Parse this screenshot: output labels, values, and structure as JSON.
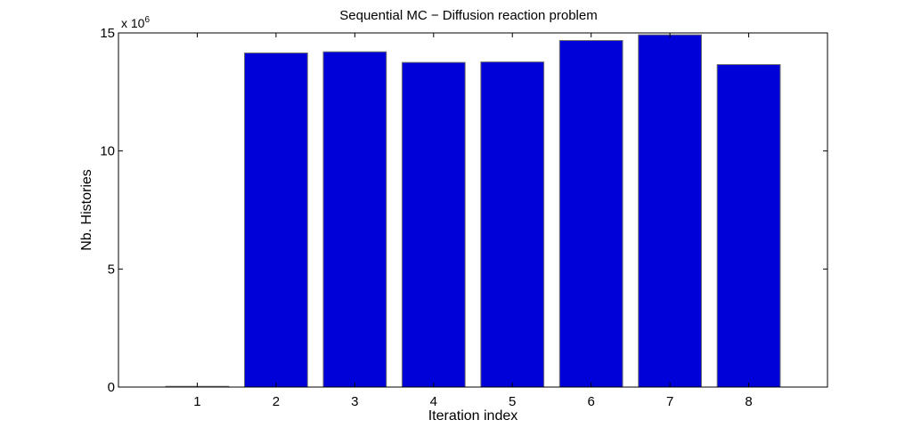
{
  "chart_data": {
    "type": "bar",
    "title": "Sequential MC − Diffusion reaction problem",
    "xlabel": "Iteration index",
    "ylabel": "Nb. Histories",
    "categories": [
      "1",
      "2",
      "3",
      "4",
      "5",
      "6",
      "7",
      "8"
    ],
    "values": [
      30000,
      14150000,
      14200000,
      13750000,
      13770000,
      14680000,
      14920000,
      13660000
    ],
    "ylim": [
      0,
      15000000
    ],
    "xlim": [
      0,
      9
    ],
    "yticks": [
      0,
      5000000,
      10000000,
      15000000
    ],
    "ytick_labels": [
      "0",
      "5",
      "10",
      "15"
    ],
    "y_multiplier": {
      "base": "x 10",
      "exponent": "6"
    },
    "grid": false,
    "bar_color": "#0000d9"
  }
}
